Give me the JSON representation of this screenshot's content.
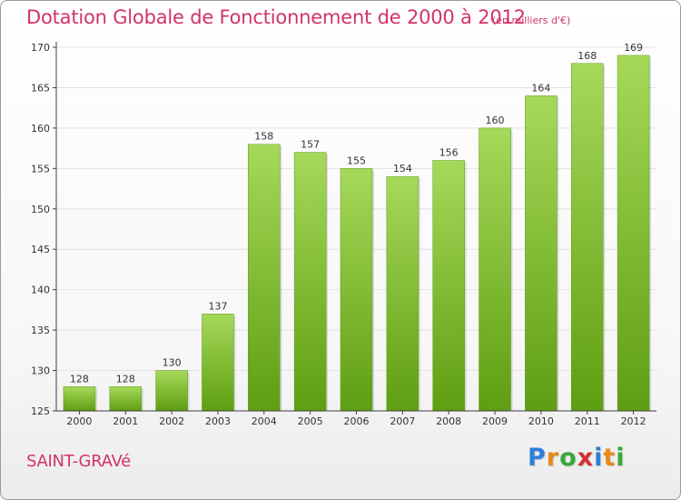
{
  "header": {
    "title": "Dotation Globale de Fonctionnement de 2000 à 2012",
    "subtitle": "(en milliers d'€)"
  },
  "footer": {
    "commune": "SAINT-GRAVé",
    "logo_text": "Proxiti"
  },
  "colors": {
    "title": "#d2336a",
    "bar_light": "#a6d95a",
    "bar_dark": "#5e9e12",
    "axis": "#404040",
    "grid": "#e0e0e0"
  },
  "chart_data": {
    "type": "bar",
    "categories": [
      "2000",
      "2001",
      "2002",
      "2003",
      "2004",
      "2005",
      "2006",
      "2007",
      "2008",
      "2009",
      "2010",
      "2011",
      "2012"
    ],
    "values": [
      128,
      128,
      130,
      137,
      158,
      157,
      155,
      154,
      156,
      160,
      164,
      168,
      169
    ],
    "data_labels": [
      "128",
      "128",
      "130",
      "137",
      "158",
      "157",
      "155",
      "154",
      "156",
      "160",
      "164",
      "168",
      "169"
    ],
    "ylim": [
      125,
      170
    ],
    "yticks": [
      125,
      130,
      135,
      140,
      145,
      150,
      155,
      160,
      165,
      170
    ],
    "grid": true
  }
}
